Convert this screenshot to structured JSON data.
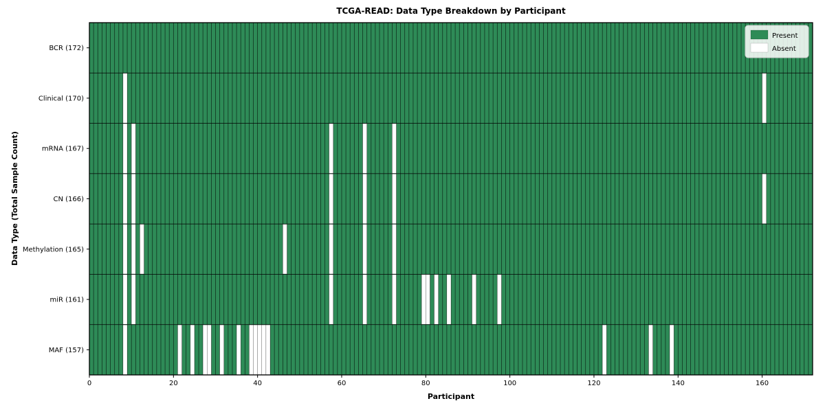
{
  "title": "TCGA-READ: Data Type Breakdown by Participant",
  "xlabel": "Participant",
  "ylabel": "Data Type (Total Sample Count)",
  "legend": {
    "items": [
      {
        "label": "Present",
        "color": "#2e8b57"
      },
      {
        "label": "Absent",
        "color": "#ffffff"
      }
    ]
  },
  "chart_data": {
    "type": "heatmap",
    "x_axis": {
      "label": "Participant",
      "min": 0,
      "max": 172,
      "ticks": [
        0,
        20,
        40,
        60,
        80,
        100,
        120,
        140,
        160
      ]
    },
    "y_axis": {
      "label": "Data Type (Total Sample Count)"
    },
    "n_participants": 172,
    "colors": {
      "present": "#2e8b57",
      "absent": "#ffffff",
      "cell_edge": "rgba(0,0,0,0.72)",
      "row_edge": "rgba(0,0,0,0.85)",
      "axis": "#000000",
      "legend_bg": "rgba(255,255,255,0.85)",
      "legend_border": "#cccccc"
    },
    "legend_position": "upper right",
    "grid": true,
    "rows": [
      {
        "label": "BCR (172)",
        "data_type": "BCR",
        "total_sample_count": 172,
        "absent_participants": []
      },
      {
        "label": "Clinical (170)",
        "data_type": "Clinical",
        "total_sample_count": 170,
        "absent_participants": [
          8,
          160
        ]
      },
      {
        "label": "mRNA (167)",
        "data_type": "mRNA",
        "total_sample_count": 167,
        "absent_participants": [
          8,
          10,
          57,
          65,
          72
        ]
      },
      {
        "label": "CN (166)",
        "data_type": "CN",
        "total_sample_count": 166,
        "absent_participants": [
          8,
          10,
          57,
          65,
          72,
          160
        ]
      },
      {
        "label": "Methylation (165)",
        "data_type": "Methylation",
        "total_sample_count": 165,
        "absent_participants": [
          8,
          10,
          12,
          46,
          57,
          65,
          72
        ]
      },
      {
        "label": "miR (161)",
        "data_type": "miR",
        "total_sample_count": 161,
        "absent_participants": [
          8,
          10,
          57,
          65,
          72,
          79,
          80,
          82,
          85,
          91,
          97
        ]
      },
      {
        "label": "MAF (157)",
        "data_type": "MAF",
        "total_sample_count": 157,
        "absent_participants": [
          8,
          21,
          24,
          27,
          28,
          31,
          35,
          38,
          39,
          40,
          41,
          42,
          122,
          133,
          138
        ]
      }
    ]
  }
}
